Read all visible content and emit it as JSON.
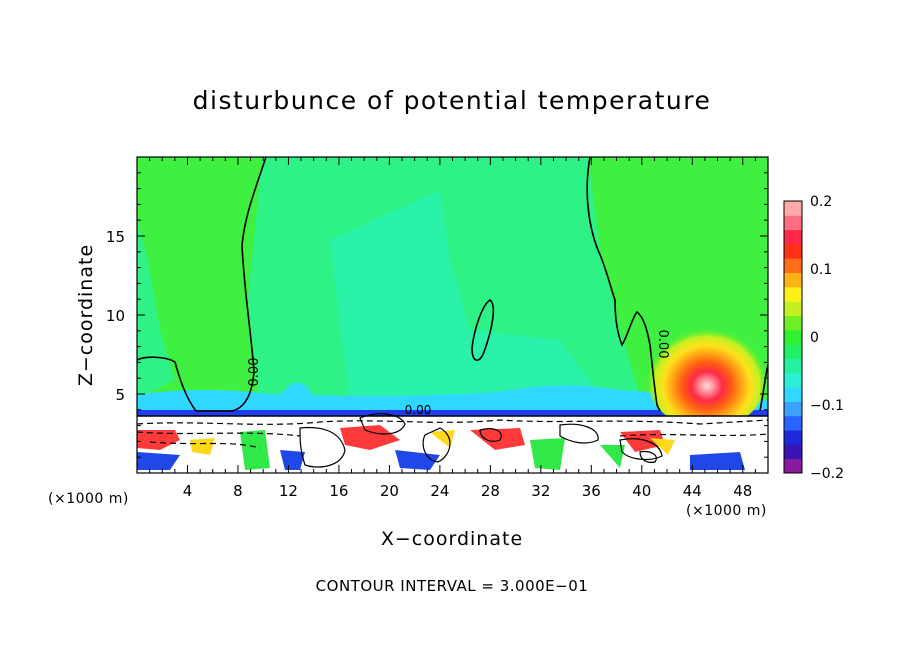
{
  "chart_data": {
    "type": "heatmap",
    "title": "disturbunce of potential temperature",
    "xlabel": "X−coordinate",
    "ylabel": "Z−coordinate",
    "x_unit": "(×1000 m)",
    "z_unit": "(×1000 m)",
    "xlim": [
      0,
      50
    ],
    "ylim": [
      0,
      20
    ],
    "x_ticks": [
      "4",
      "8",
      "12",
      "16",
      "20",
      "24",
      "28",
      "32",
      "36",
      "40",
      "44",
      "48"
    ],
    "y_ticks": [
      "5",
      "10",
      "15"
    ],
    "contour_interval_text": "CONTOUR INTERVAL = 3.000E−01",
    "contour_labels": [
      "0.00",
      "0.00",
      "0.00"
    ],
    "colorbar": {
      "range": [
        -0.2,
        0.2
      ],
      "tick_labels": [
        "0.2",
        "0.1",
        "0",
        "−0.1",
        "−0.2"
      ],
      "colors": [
        "#8c1aa0",
        "#3c14b4",
        "#1e28dc",
        "#2864ff",
        "#3ca0ff",
        "#30d8ff",
        "#2cf0d4",
        "#22f2a0",
        "#22f064",
        "#30f030",
        "#6ef028",
        "#c4f020",
        "#fff01c",
        "#ffb414",
        "#ff6e14",
        "#ff3218",
        "#ff2848",
        "#ff6e82",
        "#ffaaaa"
      ]
    }
  }
}
